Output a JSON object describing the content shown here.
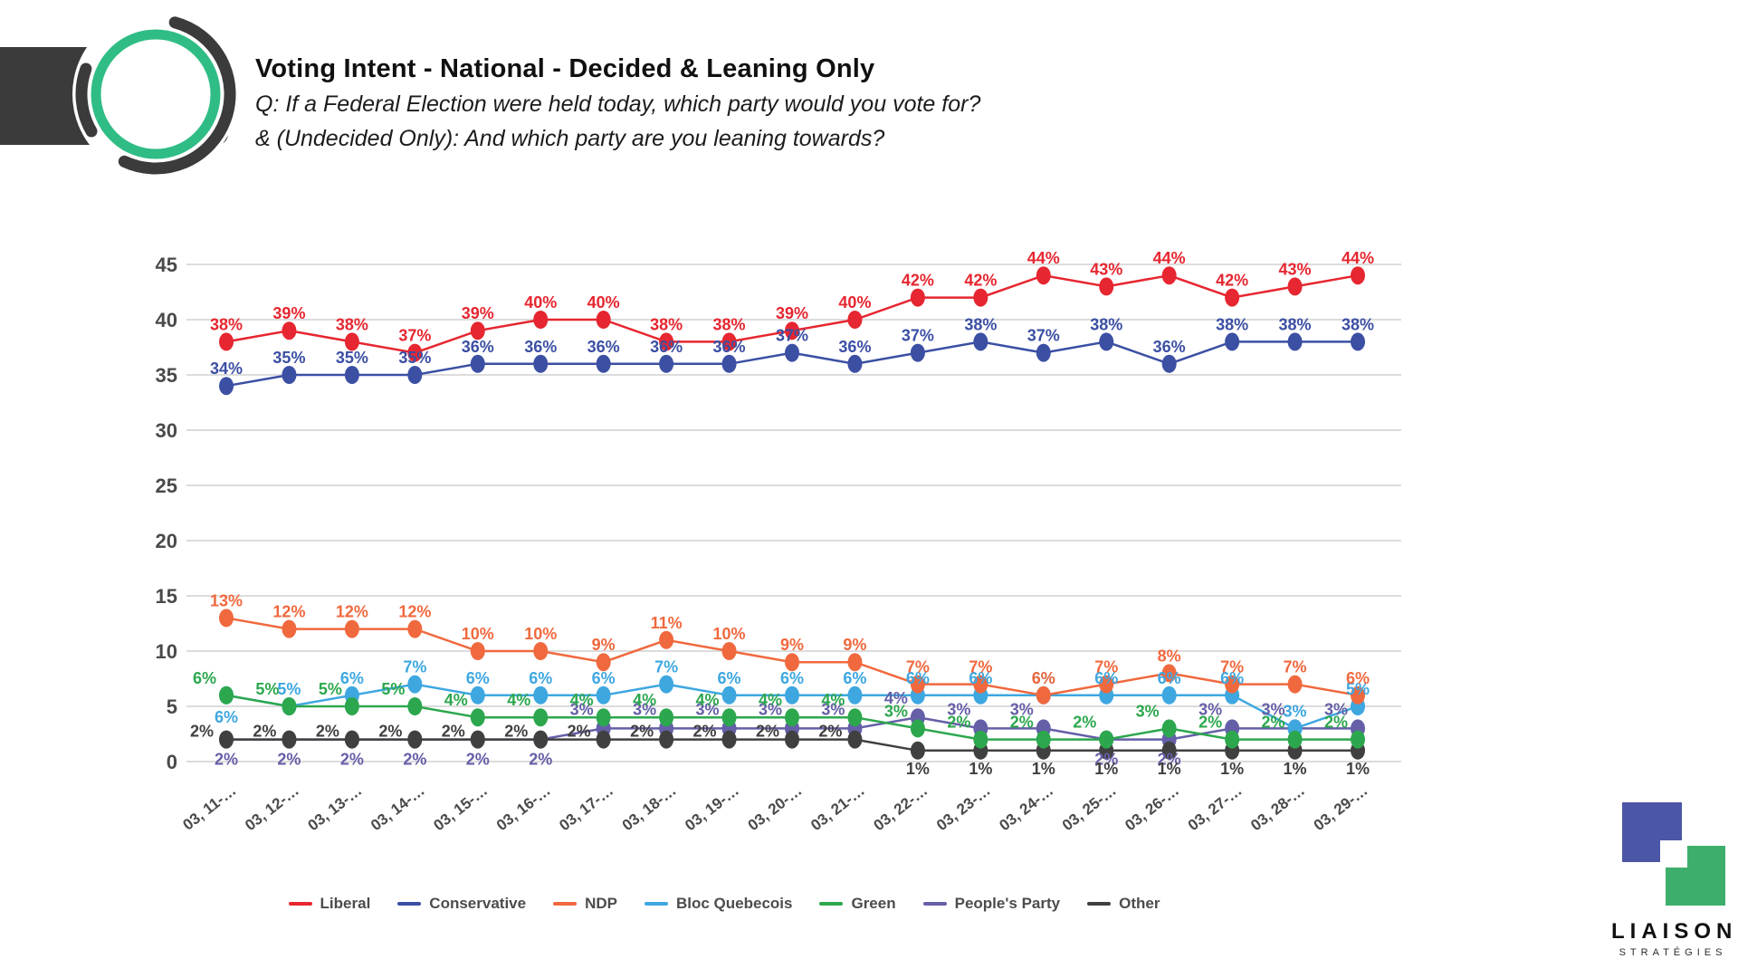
{
  "header": {
    "title": "Voting Intent - National - Decided & Leaning Only",
    "subtitle_line1": "Q: If a Federal Election were held today, which party would you vote for?",
    "subtitle_line2": "& (Undecided Only): And which party are you leaning towards?"
  },
  "branding": {
    "name": "LIAISON",
    "tagline": "STRATÉGIES"
  },
  "chart_data": {
    "type": "line",
    "title": "Voting Intent - National - Decided & Leaning Only",
    "xlabel": "",
    "ylabel": "",
    "ylim": [
      0,
      45
    ],
    "y_ticks": [
      0,
      5,
      10,
      15,
      20,
      25,
      30,
      35,
      40,
      45
    ],
    "grid": true,
    "legend_position": "bottom",
    "x_labels": [
      "03, 11-…",
      "03, 12-…",
      "03, 13-…",
      "03, 14-…",
      "03, 15-…",
      "03, 16-…",
      "03, 17-…",
      "03, 18-…",
      "03, 19-…",
      "03, 20-…",
      "03, 21-…",
      "03, 22-…",
      "03, 23-…",
      "03, 24-…",
      "03, 25-…",
      "03, 26-…",
      "03, 27-…",
      "03, 28-…",
      "03, 29-…"
    ],
    "value_suffix": "%",
    "series": [
      {
        "name": "Liberal",
        "color": "#e62630",
        "values": [
          38,
          39,
          38,
          37,
          39,
          40,
          40,
          38,
          38,
          39,
          40,
          42,
          42,
          44,
          43,
          44,
          42,
          43,
          44
        ],
        "label_side": "above"
      },
      {
        "name": "Conservative",
        "color": "#3b4fa3",
        "values": [
          34,
          35,
          35,
          35,
          36,
          36,
          36,
          36,
          36,
          37,
          36,
          37,
          38,
          37,
          38,
          36,
          38,
          38,
          38
        ],
        "label_side": "above"
      },
      {
        "name": "NDP",
        "color": "#f0693e",
        "values": [
          13,
          12,
          12,
          12,
          10,
          10,
          9,
          11,
          10,
          9,
          9,
          7,
          7,
          6,
          7,
          8,
          7,
          7,
          6
        ],
        "label_side": "above"
      },
      {
        "name": "Bloc Quebecois",
        "color": "#3ea7e0",
        "values": [
          6,
          5,
          6,
          7,
          6,
          6,
          6,
          7,
          6,
          6,
          6,
          6,
          6,
          6,
          6,
          6,
          6,
          3,
          5
        ],
        "label_side": "above",
        "label_below_indices": [
          0
        ]
      },
      {
        "name": "Green",
        "color": "#2ca74e",
        "values": [
          6,
          5,
          5,
          5,
          4,
          4,
          4,
          4,
          4,
          4,
          4,
          3,
          2,
          2,
          2,
          3,
          2,
          2,
          2
        ],
        "label_side": "above",
        "above_dx": -24,
        "above_dy": -4
      },
      {
        "name": "People's Party",
        "color": "#655fa8",
        "values": [
          2,
          2,
          2,
          2,
          2,
          2,
          3,
          3,
          3,
          3,
          3,
          4,
          3,
          3,
          2,
          2,
          3,
          3,
          3
        ],
        "label_side": "auto",
        "auto_threshold": 3,
        "above_dx": -24,
        "above_dy": -6,
        "below_dy": 28
      },
      {
        "name": "Other",
        "color": "#404040",
        "values": [
          2,
          2,
          2,
          2,
          2,
          2,
          2,
          2,
          2,
          2,
          2,
          1,
          1,
          1,
          1,
          1,
          1,
          1,
          1
        ],
        "label_side": "auto",
        "auto_threshold": 2,
        "above_dx": -27,
        "above_dy": 6,
        "below_dy": 26
      }
    ]
  }
}
